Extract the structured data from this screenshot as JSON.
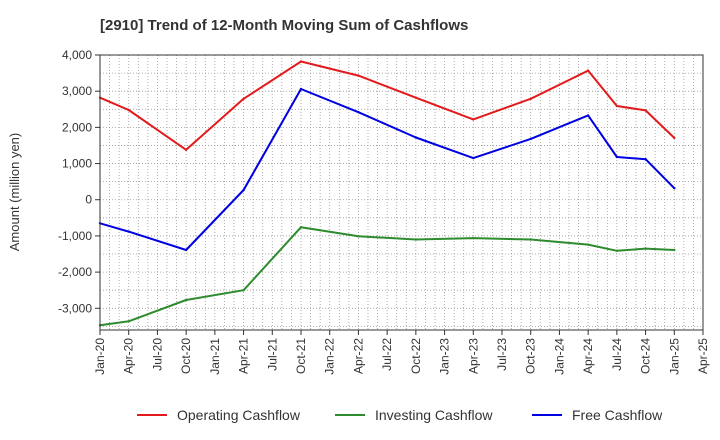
{
  "chart_data": {
    "type": "line",
    "title": "[2910]  Trend of 12-Month Moving Sum of Cashflows",
    "xlabel": "",
    "ylabel": "Amount (million yen)",
    "ylim": [
      -3600,
      4000
    ],
    "yticks": [
      4000,
      3000,
      2000,
      1000,
      0,
      -1000,
      -2000,
      -3000
    ],
    "ytick_labels": [
      "4,000",
      "3,000",
      "2,000",
      "1,000",
      "0",
      "-1,000",
      "-2,000",
      "-3,000"
    ],
    "xticks": [
      "Jan-20",
      "Apr-20",
      "Jul-20",
      "Oct-20",
      "Jan-21",
      "Apr-21",
      "Jul-21",
      "Oct-21",
      "Jan-22",
      "Apr-22",
      "Jul-22",
      "Oct-22",
      "Jan-23",
      "Apr-23",
      "Jul-23",
      "Oct-23",
      "Jan-24",
      "Apr-24",
      "Jul-24",
      "Oct-24",
      "Jan-25",
      "Apr-25"
    ],
    "x": [
      "Jan-20",
      "Apr-20",
      "Oct-20",
      "Apr-21",
      "Oct-21",
      "Apr-22",
      "Oct-22",
      "Apr-23",
      "Oct-23",
      "Apr-24",
      "Jul-24",
      "Oct-24",
      "Jan-25"
    ],
    "grid": true,
    "legend_position": "bottom",
    "series": [
      {
        "name": "Operating Cashflow",
        "color": "#e31a1c",
        "values": [
          2820,
          2480,
          1380,
          2790,
          3820,
          3430,
          2820,
          2220,
          2790,
          3570,
          2590,
          2470,
          1710
        ]
      },
      {
        "name": "Investing Cashflow",
        "color": "#2e8b2e",
        "values": [
          -3470,
          -3360,
          -2770,
          -2500,
          -760,
          -1010,
          -1100,
          -1060,
          -1100,
          -1240,
          -1410,
          -1350,
          -1390
        ]
      },
      {
        "name": "Free Cashflow",
        "color": "#0000e0",
        "values": [
          -650,
          -880,
          -1390,
          270,
          3060,
          2420,
          1720,
          1150,
          1680,
          2330,
          1180,
          1120,
          320
        ]
      }
    ]
  }
}
